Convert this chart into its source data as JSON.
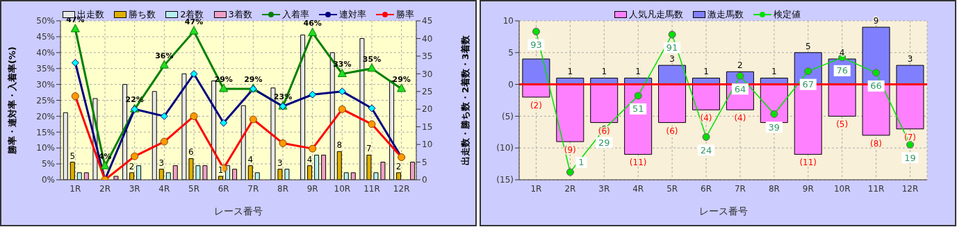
{
  "chart_data": [
    {
      "type": "bar",
      "xlabel": "レース番号",
      "ylabel": "勝率・連対率・入着率(%)",
      "y2label": "出走数・勝ち数・2着数・3着数",
      "categories": [
        "1R",
        "2R",
        "3R",
        "4R",
        "5R",
        "6R",
        "7R",
        "8R",
        "9R",
        "10R",
        "11R",
        "12R"
      ],
      "series": [
        {
          "name": "出走数",
          "axis": "y2",
          "color": "#e8e8e8",
          "values": [
            19,
            23,
            27,
            25,
            30,
            28,
            21,
            26,
            41,
            36,
            40,
            28
          ]
        },
        {
          "name": "勝ち数",
          "axis": "y2",
          "color": "#e0b000",
          "values": [
            5,
            0,
            2,
            3,
            6,
            1,
            4,
            3,
            4,
            8,
            7,
            2
          ],
          "value_labels": [
            "5",
            null,
            "2",
            "3",
            "6",
            "1",
            "4",
            "3",
            "4",
            "8",
            "7",
            "2"
          ]
        },
        {
          "name": "2着数",
          "axis": "y2",
          "color": "#b8f0f0",
          "values": [
            2,
            0,
            4,
            2,
            4,
            4,
            2,
            3,
            7,
            2,
            2,
            0
          ]
        },
        {
          "name": "3着数",
          "axis": "y2",
          "color": "#f0a0c8",
          "values": [
            2,
            1,
            0,
            4,
            4,
            3,
            0,
            0,
            7,
            2,
            5,
            5
          ]
        },
        {
          "name": "入着率",
          "type": "line",
          "color": "#008000",
          "marker": "triangle",
          "values": [
            47.4,
            4.3,
            22.2,
            36,
            46.7,
            28.6,
            28.6,
            23.1,
            46.2,
            33.3,
            35,
            28.6
          ],
          "value_labels": [
            "47%",
            "4%",
            "22%",
            "36%",
            "47%",
            "29%",
            "29%",
            "23%",
            "46%",
            "33%",
            "35%",
            "29%"
          ]
        },
        {
          "name": "連対率",
          "type": "line",
          "color": "#000080",
          "marker": "diamond",
          "values": [
            36.8,
            0,
            22.2,
            20,
            33.3,
            17.9,
            28.6,
            23.1,
            26.8,
            27.8,
            22.5,
            7.1
          ]
        },
        {
          "name": "勝率",
          "type": "line",
          "color": "#ff0000",
          "marker": "circle",
          "values": [
            26.3,
            0,
            7.4,
            12,
            20,
            3.6,
            19,
            11.5,
            9.8,
            22.2,
            17.5,
            7.1
          ]
        }
      ],
      "ylim": [
        0,
        50
      ],
      "yticks": [
        {
          "value": 0,
          "label": "0%"
        },
        {
          "value": 5,
          "label": "5%"
        },
        {
          "value": 10,
          "label": "10%"
        },
        {
          "value": 15,
          "label": "15%"
        },
        {
          "value": 20,
          "label": "20%"
        },
        {
          "value": 25,
          "label": "25%"
        },
        {
          "value": 30,
          "label": "30%"
        },
        {
          "value": 35,
          "label": "35%"
        },
        {
          "value": 40,
          "label": "40%"
        },
        {
          "value": 45,
          "label": "45%"
        },
        {
          "value": 50,
          "label": "50%"
        }
      ],
      "y2lim": [
        0,
        45
      ],
      "y2ticks": [
        0,
        5,
        10,
        15,
        20,
        25,
        30,
        35,
        40,
        45
      ],
      "grid": true,
      "legend": "top"
    },
    {
      "type": "bar",
      "xlabel": "レース番号",
      "stacked": true,
      "categories": [
        "1R",
        "2R",
        "3R",
        "4R",
        "5R",
        "6R",
        "7R",
        "8R",
        "9R",
        "10R",
        "11R",
        "12R"
      ],
      "series": [
        {
          "name": "人気凡走馬数",
          "color": "#ff80ff",
          "values": [
            -2,
            -9,
            -6,
            -11,
            -6,
            -4,
            -4,
            -6,
            -11,
            -5,
            -8,
            -7
          ],
          "value_labels": [
            "(2)",
            "(9)",
            "(6)",
            "(11)",
            "(6)",
            "(4)",
            "(4)",
            null,
            "(11)",
            "(5)",
            "(8)",
            "(7)"
          ]
        },
        {
          "name": "激走馬数",
          "color": "#8080ff",
          "values": [
            4,
            1,
            1,
            1,
            3,
            1,
            2,
            1,
            5,
            4,
            9,
            3
          ],
          "value_labels": [
            null,
            "1",
            "1",
            "1",
            "3",
            "1",
            "2",
            "1",
            "5",
            "4",
            "9",
            "3"
          ]
        },
        {
          "name": "検定値",
          "type": "line",
          "axis": "y2",
          "color": "#00e000",
          "marker": "circle",
          "values": [
            93,
            1,
            29,
            51,
            91,
            24,
            64,
            39,
            67,
            76,
            66,
            19
          ],
          "value_labels": [
            "93",
            "1",
            "29",
            "51",
            "91",
            "24",
            "64",
            "39",
            "67",
            "76",
            "66",
            "19"
          ]
        }
      ],
      "ylim": [
        -15,
        10
      ],
      "y2lim": [
        -4,
        100
      ],
      "yticks": [
        {
          "value": -15,
          "label": "(15)"
        },
        {
          "value": -10,
          "label": "(10)"
        },
        {
          "value": -5,
          "label": "(5)"
        },
        0,
        5,
        10
      ],
      "ref_lines": [
        {
          "axis": "y",
          "value": 0,
          "color": "#ff0000"
        }
      ],
      "grid": true,
      "legend": "top"
    }
  ]
}
